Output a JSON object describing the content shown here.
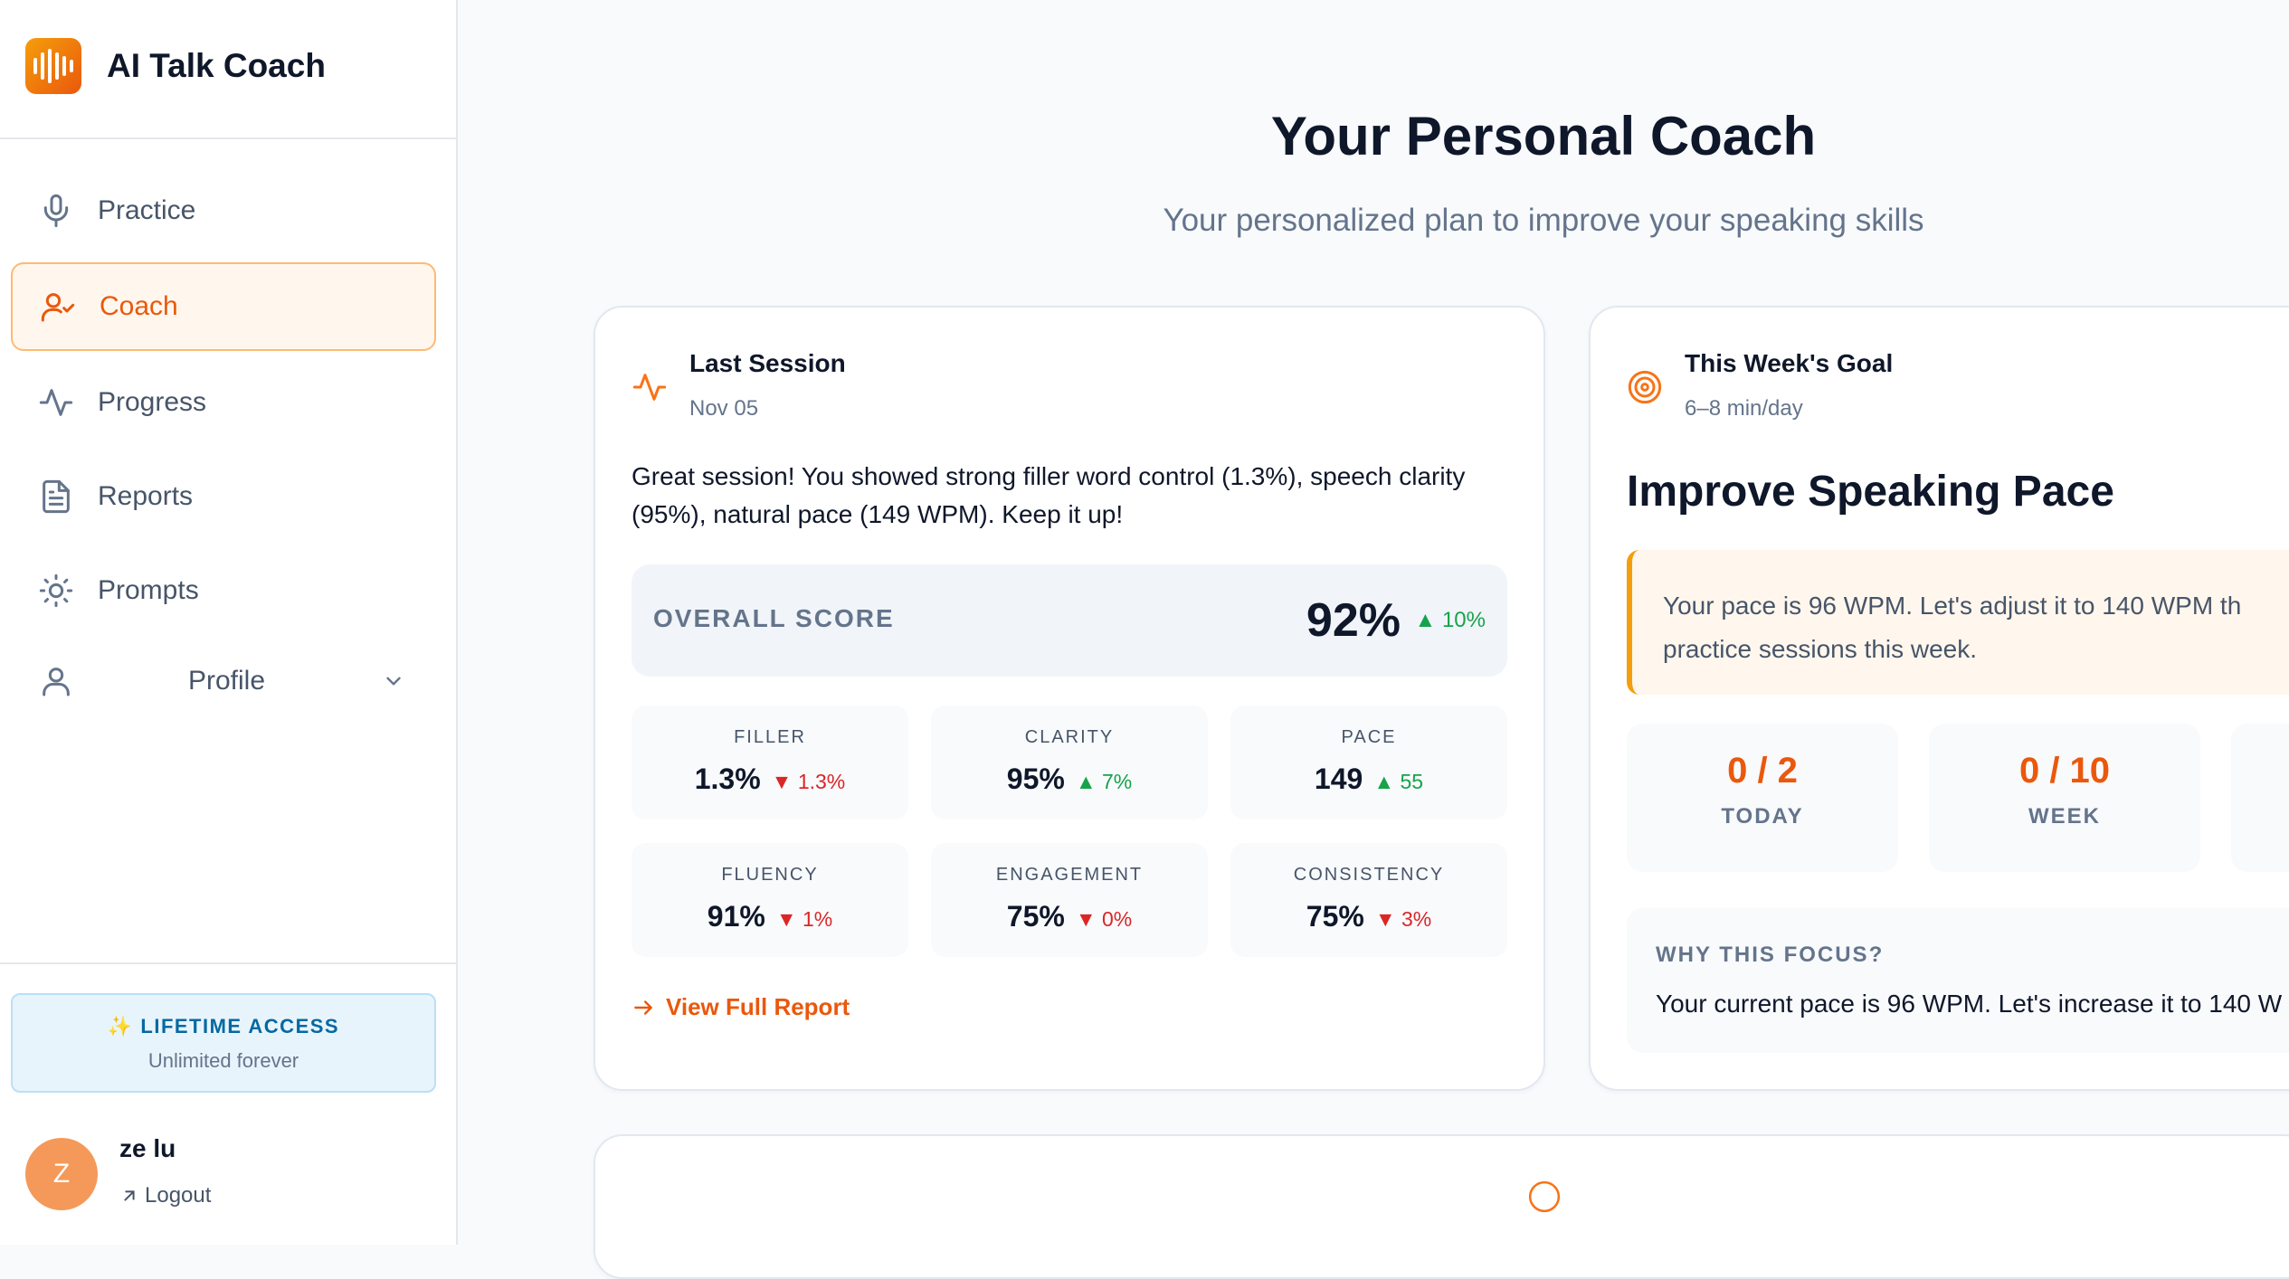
{
  "brand": {
    "name": "AI Talk Coach"
  },
  "sidebar": {
    "items": [
      {
        "label": "Practice",
        "icon": "microphone-icon"
      },
      {
        "label": "Coach",
        "icon": "user-check-icon",
        "active": true
      },
      {
        "label": "Progress",
        "icon": "activity-icon"
      },
      {
        "label": "Reports",
        "icon": "document-icon"
      },
      {
        "label": "Prompts",
        "icon": "sun-icon"
      },
      {
        "label": "Profile",
        "icon": "user-icon"
      }
    ],
    "plan": {
      "title": "✨ LIFETIME ACCESS",
      "subtitle": "Unlimited forever"
    },
    "user": {
      "initial": "Z",
      "name": "ze lu",
      "logout": "Logout"
    }
  },
  "main": {
    "title": "Your Personal Coach",
    "subtitle": "Your personalized plan to improve your speaking skills"
  },
  "last_session": {
    "title": "Last Session",
    "date": "Nov 05",
    "summary": "Great session! You showed strong filler word control (1.3%), speech clarity (95%), natural pace (149 WPM). Keep it up!",
    "overall": {
      "label": "OVERALL SCORE",
      "value": "92%",
      "delta": "10%",
      "direction": "up"
    },
    "metrics": [
      {
        "label": "FILLER",
        "value": "1.3%",
        "delta": "1.3%",
        "direction": "down"
      },
      {
        "label": "CLARITY",
        "value": "95%",
        "delta": "7%",
        "direction": "up"
      },
      {
        "label": "PACE",
        "value": "149",
        "delta": "55",
        "direction": "up"
      },
      {
        "label": "FLUENCY",
        "value": "91%",
        "delta": "1%",
        "direction": "down"
      },
      {
        "label": "ENGAGEMENT",
        "value": "75%",
        "delta": "0%",
        "direction": "down"
      },
      {
        "label": "CONSISTENCY",
        "value": "75%",
        "delta": "3%",
        "direction": "down"
      }
    ],
    "link": "View Full Report"
  },
  "weekly_goal": {
    "title": "This Week's Goal",
    "subtitle": "6–8 min/day",
    "goal": "Improve Speaking Pace",
    "description_line1": "Your pace is 96 WPM. Let's adjust it to 140 WPM th",
    "description_line2": "practice sessions this week.",
    "stats": [
      {
        "value": "0 / 2",
        "label": "TODAY"
      },
      {
        "value": "0 / 10",
        "label": "WEEK"
      }
    ],
    "why_title": "WHY THIS FOCUS?",
    "why_body": "Your current pace is 96 WPM. Let's increase it to 140 W"
  },
  "colors": {
    "accent": "#ea580c",
    "positive": "#16a34a",
    "negative": "#dc2626"
  }
}
